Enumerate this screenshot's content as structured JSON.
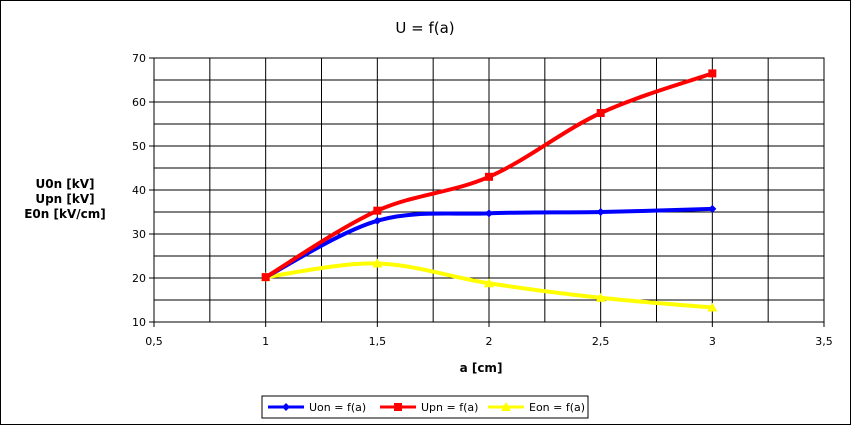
{
  "chart_data": {
    "type": "line",
    "title": "U = f(a)",
    "xlabel": "a [cm]",
    "ylabel_lines": [
      "U0n [kV]",
      "Upn [kV]",
      "E0n [kV/cm]"
    ],
    "xlim": [
      0.5,
      3.5
    ],
    "ylim": [
      10,
      70
    ],
    "x_ticks": [
      0.5,
      1,
      1.5,
      2,
      2.5,
      3,
      3.5
    ],
    "x_tick_labels": [
      "0,5",
      "1",
      "1,5",
      "2",
      "2,5",
      "3",
      "3,5"
    ],
    "y_ticks": [
      10,
      20,
      30,
      40,
      50,
      60,
      70
    ],
    "y_tick_labels": [
      "10",
      "20",
      "30",
      "40",
      "50",
      "60",
      "70"
    ],
    "x_minor_step": 0.25,
    "y_minor_step": 5,
    "grid": true,
    "legend_position": "bottom",
    "series": [
      {
        "name": "Uon = f(a)",
        "color": "#0000ff",
        "marker": "diamond",
        "x": [
          1,
          1.5,
          2,
          2.5,
          3
        ],
        "y": [
          20.2,
          33.0,
          34.7,
          35.0,
          35.7
        ]
      },
      {
        "name": "Upn = f(a)",
        "color": "#ff0000",
        "marker": "square",
        "x": [
          1,
          1.5,
          2,
          2.5,
          3
        ],
        "y": [
          20.2,
          35.3,
          43.0,
          57.5,
          66.5
        ]
      },
      {
        "name": "Eon = f(a)",
        "color": "#ffff00",
        "marker": "triangle",
        "x": [
          1,
          1.5,
          2,
          2.5,
          3
        ],
        "y": [
          20.2,
          23.3,
          18.8,
          15.5,
          13.3
        ]
      }
    ]
  }
}
